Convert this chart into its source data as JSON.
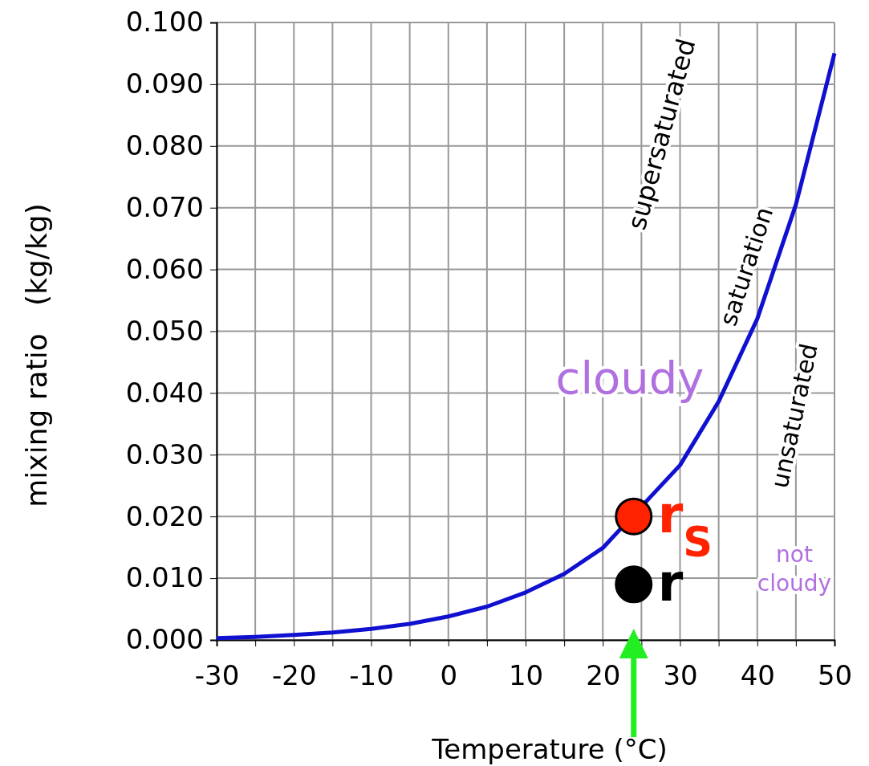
{
  "chart_data": {
    "type": "line",
    "xlabel": "Temperature (°C)",
    "ylabel": "mixing ratio   (kg/kg)",
    "xlim": [
      -30,
      50
    ],
    "ylim": [
      0,
      0.1
    ],
    "xticks": [
      -30,
      {
        "value": -25,
        "label": null
      },
      -20,
      {
        "value": -15,
        "label": null
      },
      -10,
      {
        "value": -5,
        "label": null
      },
      0,
      {
        "value": 5,
        "label": null
      },
      10,
      {
        "value": 15,
        "label": null
      },
      20,
      {
        "value": 25,
        "label": null
      },
      30,
      {
        "value": 35,
        "label": null
      },
      40,
      {
        "value": 45,
        "label": null
      },
      50
    ],
    "yticks": [
      {
        "value": 0,
        "label": "0.000"
      },
      {
        "value": 0.01,
        "label": "0.010"
      },
      {
        "value": 0.02,
        "label": "0.020"
      },
      {
        "value": 0.03,
        "label": "0.030"
      },
      {
        "value": 0.04,
        "label": "0.040"
      },
      {
        "value": 0.05,
        "label": "0.050"
      },
      {
        "value": 0.06,
        "label": "0.060"
      },
      {
        "value": 0.07,
        "label": "0.070"
      },
      {
        "value": 0.08,
        "label": "0.080"
      },
      {
        "value": 0.09,
        "label": "0.090"
      },
      {
        "value": 0.1,
        "label": "0.100"
      }
    ],
    "grid": true,
    "series": [
      {
        "color": "#1010d0",
        "marker": "none",
        "x": [
          -30,
          -25,
          -20,
          -15,
          -10,
          -5,
          0,
          5,
          10,
          15,
          20,
          25,
          30,
          35,
          40,
          45,
          50
        ],
        "values": [
          0.0003,
          0.0005,
          0.0008,
          0.0012,
          0.0018,
          0.0026,
          0.0038,
          0.0054,
          0.0077,
          0.0107,
          0.0149,
          null,
          0.0283,
          0.0386,
          0.052,
          0.0705,
          0.095
        ]
      },
      {
        "type": "scatter",
        "marker": "circle",
        "name": "r$_{S}$",
        "color": "#ff2200",
        "x": [
          24
        ],
        "values": [
          0.02
        ]
      },
      {
        "type": "scatter",
        "marker": "circle",
        "name": "r",
        "color": "#000000",
        "x": [
          24
        ],
        "values": [
          0.009
        ]
      }
    ],
    "annotations": [
      "supersaturated",
      "saturation",
      "unsaturated",
      "cloudy",
      "not cloudy"
    ]
  }
}
